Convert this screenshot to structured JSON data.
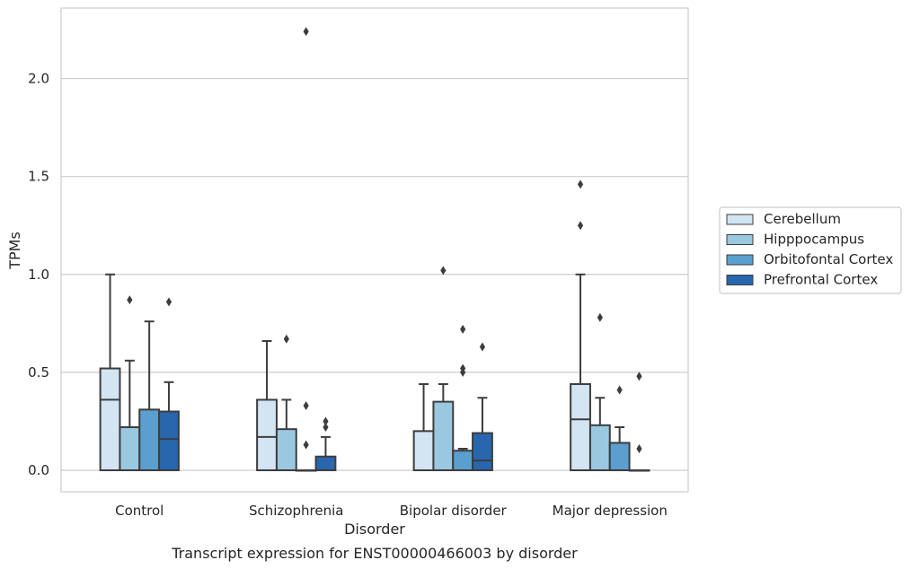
{
  "chart_data": {
    "type": "box",
    "title": "",
    "caption": "Transcript expression for ENST00000466003 by disorder",
    "xlabel": "Disorder",
    "ylabel": "TPMs",
    "ylim": [
      -0.11,
      2.36
    ],
    "yticks": [
      0.0,
      0.5,
      1.0,
      1.5,
      2.0
    ],
    "ytick_labels": [
      "0.0",
      "0.5",
      "1.0",
      "1.5",
      "2.0"
    ],
    "grid": "horizontal",
    "legend_position": "right",
    "categories": [
      "Control",
      "Schizophrenia",
      "Bipolar disorder",
      "Major depression"
    ],
    "series": [
      {
        "name": "Cerebellum",
        "color": "#d3e4f3",
        "boxes": [
          {
            "q1": 0.0,
            "median": 0.36,
            "q3": 0.52,
            "whisker_low": 0.0,
            "whisker_high": 1.0,
            "outliers": []
          },
          {
            "q1": 0.0,
            "median": 0.17,
            "q3": 0.36,
            "whisker_low": 0.0,
            "whisker_high": 0.66,
            "outliers": []
          },
          {
            "q1": 0.0,
            "median": 0.0,
            "q3": 0.2,
            "whisker_low": 0.0,
            "whisker_high": 0.44,
            "outliers": []
          },
          {
            "q1": 0.0,
            "median": 0.26,
            "q3": 0.44,
            "whisker_low": 0.0,
            "whisker_high": 1.0,
            "outliers": [
              1.25,
              1.46
            ]
          }
        ]
      },
      {
        "name": "Hipppocampus",
        "color": "#9ac8e0",
        "boxes": [
          {
            "q1": 0.0,
            "median": 0.0,
            "q3": 0.22,
            "whisker_low": 0.0,
            "whisker_high": 0.56,
            "outliers": [
              0.87
            ]
          },
          {
            "q1": 0.0,
            "median": 0.0,
            "q3": 0.21,
            "whisker_low": 0.0,
            "whisker_high": 0.36,
            "outliers": [
              0.67
            ]
          },
          {
            "q1": 0.0,
            "median": 0.0,
            "q3": 0.35,
            "whisker_low": 0.0,
            "whisker_high": 0.44,
            "outliers": [
              1.02
            ]
          },
          {
            "q1": 0.0,
            "median": 0.0,
            "q3": 0.23,
            "whisker_low": 0.0,
            "whisker_high": 0.37,
            "outliers": [
              0.78
            ]
          }
        ]
      },
      {
        "name": "Orbitofontal Cortex",
        "color": "#5a9fcf",
        "boxes": [
          {
            "q1": 0.0,
            "median": 0.0,
            "q3": 0.31,
            "whisker_low": 0.0,
            "whisker_high": 0.76,
            "outliers": []
          },
          {
            "q1": 0.0,
            "median": 0.0,
            "q3": 0.0,
            "whisker_low": 0.0,
            "whisker_high": 0.0,
            "outliers": [
              0.13,
              0.33,
              2.24
            ]
          },
          {
            "q1": 0.0,
            "median": 0.0,
            "q3": 0.1,
            "whisker_low": 0.0,
            "whisker_high": 0.11,
            "outliers": [
              0.5,
              0.52,
              0.72
            ]
          },
          {
            "q1": 0.0,
            "median": 0.0,
            "q3": 0.14,
            "whisker_low": 0.0,
            "whisker_high": 0.22,
            "outliers": [
              0.41
            ]
          }
        ]
      },
      {
        "name": "Prefrontal Cortex",
        "color": "#2867ae",
        "boxes": [
          {
            "q1": 0.0,
            "median": 0.16,
            "q3": 0.3,
            "whisker_low": 0.0,
            "whisker_high": 0.45,
            "outliers": [
              0.86
            ]
          },
          {
            "q1": 0.0,
            "median": 0.0,
            "q3": 0.07,
            "whisker_low": 0.0,
            "whisker_high": 0.17,
            "outliers": [
              0.22,
              0.25
            ]
          },
          {
            "q1": 0.0,
            "median": 0.05,
            "q3": 0.19,
            "whisker_low": 0.0,
            "whisker_high": 0.37,
            "outliers": [
              0.63
            ]
          },
          {
            "q1": 0.0,
            "median": 0.0,
            "q3": 0.0,
            "whisker_low": 0.0,
            "whisker_high": 0.0,
            "outliers": [
              0.11,
              0.48
            ]
          }
        ]
      }
    ]
  }
}
